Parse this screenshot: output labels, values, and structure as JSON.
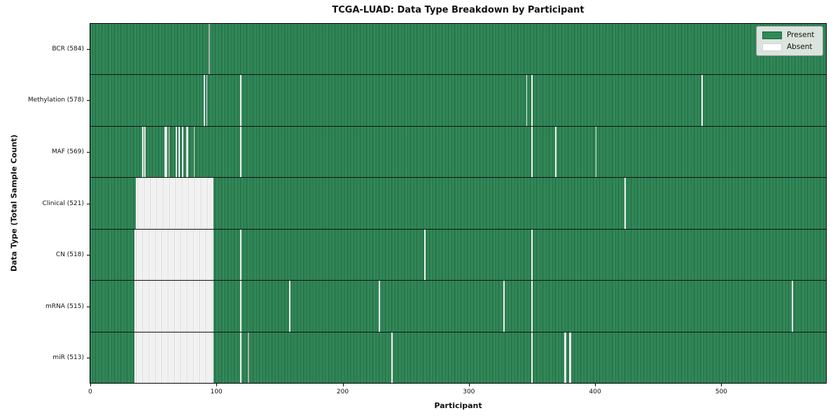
{
  "title": "TCGA-LUAD: Data Type Breakdown by Participant",
  "xlabel": "Participant",
  "ylabel": "Data Type (Total Sample Count)",
  "legend": {
    "present_label": "Present",
    "absent_label": "Absent"
  },
  "colors": {
    "present": "#2e8b57",
    "present_edge": "#215f3e",
    "absent": "#ffffff",
    "artifact_gray": "#a9aeaa",
    "legend_bg": "#e9ede9"
  },
  "chart_data": {
    "type": "heatmap",
    "title": "TCGA-LUAD: Data Type Breakdown by Participant",
    "xlabel": "Participant",
    "ylabel": "Data Type (Total Sample Count)",
    "legend": [
      "Present",
      "Absent"
    ],
    "legend_position": "upper right",
    "n_participants": 584,
    "x_range": [
      0,
      584
    ],
    "x_ticks": [
      0,
      100,
      200,
      300,
      400,
      500
    ],
    "rows": [
      {
        "name": "BCR",
        "label": "BCR (584)",
        "present_count": 584,
        "absent_count": 0,
        "absent_segments": [],
        "gray_marks": [
          [
            94,
            1
          ]
        ]
      },
      {
        "name": "Methylation",
        "label": "Methylation (578)",
        "present_count": 578,
        "absent_count": 6,
        "absent_segments": [
          [
            90,
            1
          ],
          [
            92,
            1
          ],
          [
            119,
            1
          ],
          [
            346,
            1
          ],
          [
            350,
            1
          ],
          [
            485,
            1
          ]
        ],
        "gray_marks": []
      },
      {
        "name": "MAF",
        "label": "MAF (569)",
        "present_count": 569,
        "absent_count": 15,
        "absent_segments": [
          [
            41,
            1
          ],
          [
            43,
            1
          ],
          [
            59,
            2
          ],
          [
            62,
            1
          ],
          [
            68,
            1
          ],
          [
            70,
            1
          ],
          [
            73,
            1
          ],
          [
            76,
            2
          ],
          [
            82,
            1
          ],
          [
            119,
            1
          ],
          [
            350,
            1
          ],
          [
            369,
            1
          ],
          [
            401,
            1
          ]
        ],
        "gray_marks": []
      },
      {
        "name": "Clinical",
        "label": "Clinical (521)",
        "present_count": 521,
        "absent_count": 63,
        "absent_segments": [
          [
            36,
            62
          ],
          [
            424,
            1
          ]
        ],
        "gray_marks": []
      },
      {
        "name": "CN",
        "label": "CN (518)",
        "present_count": 518,
        "absent_count": 66,
        "absent_segments": [
          [
            35,
            63
          ],
          [
            119,
            1
          ],
          [
            265,
            1
          ],
          [
            350,
            1
          ]
        ],
        "gray_marks": []
      },
      {
        "name": "mRNA",
        "label": "mRNA (515)",
        "present_count": 515,
        "absent_count": 69,
        "absent_segments": [
          [
            35,
            63
          ],
          [
            119,
            1
          ],
          [
            158,
            1
          ],
          [
            229,
            1
          ],
          [
            328,
            1
          ],
          [
            350,
            1
          ],
          [
            557,
            1
          ]
        ],
        "gray_marks": []
      },
      {
        "name": "miR",
        "label": "miR (513)",
        "present_count": 513,
        "absent_count": 71,
        "absent_segments": [
          [
            35,
            63
          ],
          [
            119,
            1
          ],
          [
            239,
            1
          ],
          [
            350,
            1
          ],
          [
            376,
            2
          ],
          [
            380,
            2
          ]
        ],
        "gray_marks": [
          [
            125,
            1
          ]
        ]
      }
    ]
  }
}
